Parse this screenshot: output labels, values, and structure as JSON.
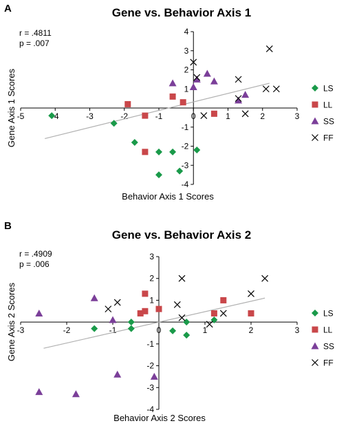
{
  "colors": {
    "LS": "#1a9a4a",
    "LL": "#c9474a",
    "SS": "#7b3f99",
    "FF": "#000000",
    "fit": "#b0b0b0",
    "axis": "#000000"
  },
  "chart_data": [
    {
      "type": "scatter",
      "panel": "A",
      "title": "Gene vs. Behavior Axis 1",
      "xlabel": "Behavior Axis 1 Scores",
      "ylabel": "Gene Axis 1 Scores",
      "stats": [
        "r = .4811",
        "p = .007"
      ],
      "xlim": [
        -5,
        3
      ],
      "ylim": [
        -4,
        4
      ],
      "xticks": [
        -5,
        -4,
        -3,
        -2,
        -1,
        0,
        1,
        2,
        3
      ],
      "yticks": [
        -4,
        -3,
        -2,
        -1,
        1,
        2,
        3,
        4
      ],
      "grid": false,
      "legend_position": "right",
      "fit_line": {
        "x": [
          -4.3,
          2.2
        ],
        "y": [
          -1.6,
          1.3
        ]
      },
      "series": [
        {
          "name": "LS",
          "marker": "diamond",
          "points": [
            [
              -4.1,
              -0.4
            ],
            [
              -2.3,
              -0.8
            ],
            [
              -1.7,
              -1.8
            ],
            [
              -1.0,
              -2.3
            ],
            [
              -0.6,
              -2.3
            ],
            [
              -0.4,
              -3.3
            ],
            [
              -1.0,
              -3.5
            ],
            [
              0.1,
              -2.2
            ]
          ]
        },
        {
          "name": "LL",
          "marker": "square",
          "points": [
            [
              -1.9,
              0.2
            ],
            [
              -1.4,
              -0.4
            ],
            [
              -1.4,
              -2.3
            ],
            [
              -0.6,
              0.6
            ],
            [
              -0.3,
              0.3
            ],
            [
              0.6,
              -0.3
            ]
          ]
        },
        {
          "name": "SS",
          "marker": "triangle",
          "points": [
            [
              -0.6,
              1.3
            ],
            [
              0.0,
              1.1
            ],
            [
              0.1,
              1.5
            ],
            [
              0.4,
              1.8
            ],
            [
              0.6,
              1.4
            ],
            [
              1.3,
              0.4
            ],
            [
              1.5,
              0.7
            ]
          ]
        },
        {
          "name": "FF",
          "marker": "x",
          "points": [
            [
              0.0,
              2.4
            ],
            [
              0.1,
              1.6
            ],
            [
              0.3,
              -0.4
            ],
            [
              1.3,
              1.5
            ],
            [
              1.3,
              0.5
            ],
            [
              1.5,
              -0.3
            ],
            [
              2.1,
              1.0
            ],
            [
              2.2,
              3.1
            ],
            [
              2.4,
              1.0
            ]
          ]
        }
      ]
    },
    {
      "type": "scatter",
      "panel": "B",
      "title": "Gene vs. Behavior Axis 2",
      "xlabel": "Behavior Axis 2 Scores",
      "ylabel": "Gene Axis 2 Scores",
      "stats": [
        "r = .4909",
        "p = .006"
      ],
      "xlim": [
        -3,
        3
      ],
      "ylim": [
        -4,
        3
      ],
      "xticks": [
        -3,
        -2,
        -1,
        0,
        1,
        2,
        3
      ],
      "yticks": [
        -4,
        -3,
        -2,
        -1,
        1,
        2,
        3
      ],
      "grid": false,
      "legend_position": "right",
      "fit_line": {
        "x": [
          -2.5,
          2.3
        ],
        "y": [
          -1.2,
          1.1
        ]
      },
      "series": [
        {
          "name": "LS",
          "marker": "diamond",
          "points": [
            [
              -1.4,
              -0.3
            ],
            [
              -0.6,
              0.0
            ],
            [
              -0.6,
              -0.3
            ],
            [
              0.3,
              -0.4
            ],
            [
              0.6,
              -0.6
            ],
            [
              0.6,
              0.0
            ],
            [
              1.2,
              0.1
            ]
          ]
        },
        {
          "name": "LL",
          "marker": "square",
          "points": [
            [
              -0.4,
              0.4
            ],
            [
              -0.3,
              0.5
            ],
            [
              -0.3,
              1.3
            ],
            [
              0.0,
              0.6
            ],
            [
              1.2,
              0.4
            ],
            [
              1.4,
              1.0
            ],
            [
              2.0,
              0.4
            ]
          ]
        },
        {
          "name": "SS",
          "marker": "triangle",
          "points": [
            [
              -2.6,
              0.4
            ],
            [
              -1.4,
              1.1
            ],
            [
              -1.0,
              0.1
            ],
            [
              -2.6,
              -3.2
            ],
            [
              -1.8,
              -3.3
            ],
            [
              -0.9,
              -2.4
            ],
            [
              -0.1,
              -2.5
            ]
          ]
        },
        {
          "name": "FF",
          "marker": "x",
          "points": [
            [
              -1.1,
              0.6
            ],
            [
              -0.9,
              0.9
            ],
            [
              0.4,
              0.8
            ],
            [
              0.5,
              2.0
            ],
            [
              0.5,
              0.2
            ],
            [
              1.1,
              -0.1
            ],
            [
              1.4,
              0.4
            ],
            [
              2.0,
              1.3
            ],
            [
              2.3,
              2.0
            ]
          ]
        }
      ]
    }
  ]
}
